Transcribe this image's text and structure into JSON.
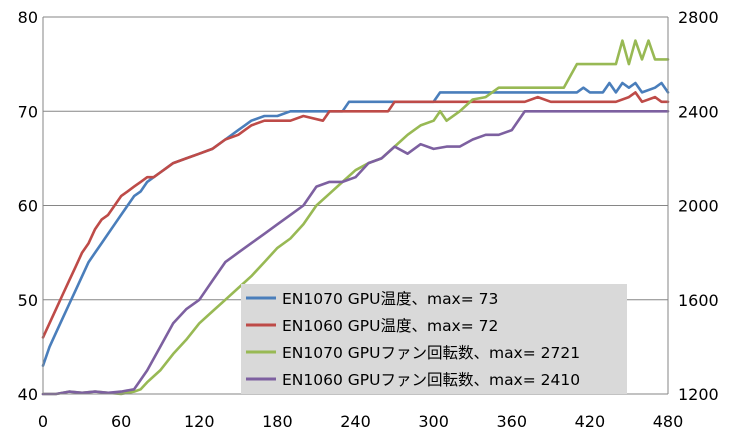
{
  "chart_data": {
    "type": "line",
    "title": "",
    "xlabel": "",
    "ylabel": "",
    "grid": true,
    "legend_position": "bottom-right",
    "x_axis": {
      "min": 0,
      "max": 480,
      "ticks": [
        0,
        60,
        120,
        180,
        240,
        300,
        360,
        420,
        480
      ]
    },
    "y_left": {
      "min": 40,
      "max": 80,
      "ticks": [
        40,
        50,
        60,
        70,
        80
      ]
    },
    "y_right": {
      "min": 1200,
      "max": 2800,
      "ticks": [
        1200,
        1600,
        2000,
        2400,
        2800
      ]
    },
    "series": [
      {
        "name": "EN1070 GPU温度、max= 73",
        "color": "#4a7ebb",
        "axis": "left",
        "points": [
          [
            0,
            43
          ],
          [
            5,
            45
          ],
          [
            10,
            46.5
          ],
          [
            15,
            48
          ],
          [
            20,
            49.5
          ],
          [
            25,
            51
          ],
          [
            30,
            52.5
          ],
          [
            35,
            54
          ],
          [
            40,
            55
          ],
          [
            45,
            56
          ],
          [
            50,
            57
          ],
          [
            55,
            58
          ],
          [
            60,
            59
          ],
          [
            65,
            60
          ],
          [
            70,
            61
          ],
          [
            75,
            61.5
          ],
          [
            80,
            62.5
          ],
          [
            85,
            63
          ],
          [
            90,
            63.5
          ],
          [
            95,
            64
          ],
          [
            100,
            64.5
          ],
          [
            110,
            65
          ],
          [
            120,
            65.5
          ],
          [
            130,
            66
          ],
          [
            140,
            67
          ],
          [
            150,
            68
          ],
          [
            155,
            68.5
          ],
          [
            160,
            69
          ],
          [
            170,
            69.5
          ],
          [
            180,
            69.5
          ],
          [
            190,
            70
          ],
          [
            200,
            70
          ],
          [
            230,
            70
          ],
          [
            235,
            71
          ],
          [
            300,
            71
          ],
          [
            305,
            72
          ],
          [
            320,
            72
          ],
          [
            330,
            72
          ],
          [
            400,
            72
          ],
          [
            410,
            72
          ],
          [
            415,
            72.5
          ],
          [
            420,
            72
          ],
          [
            430,
            72
          ],
          [
            435,
            73
          ],
          [
            440,
            72
          ],
          [
            445,
            73
          ],
          [
            450,
            72.5
          ],
          [
            455,
            73
          ],
          [
            460,
            72
          ],
          [
            470,
            72.5
          ],
          [
            475,
            73
          ],
          [
            480,
            72
          ]
        ]
      },
      {
        "name": "EN1060 GPU温度、max= 72",
        "color": "#be4b48",
        "axis": "left",
        "points": [
          [
            0,
            46
          ],
          [
            5,
            47.5
          ],
          [
            10,
            49
          ],
          [
            15,
            50.5
          ],
          [
            20,
            52
          ],
          [
            25,
            53.5
          ],
          [
            30,
            55
          ],
          [
            35,
            56
          ],
          [
            40,
            57.5
          ],
          [
            45,
            58.5
          ],
          [
            50,
            59
          ],
          [
            55,
            60
          ],
          [
            60,
            61
          ],
          [
            65,
            61.5
          ],
          [
            70,
            62
          ],
          [
            75,
            62.5
          ],
          [
            80,
            63
          ],
          [
            85,
            63
          ],
          [
            90,
            63.5
          ],
          [
            95,
            64
          ],
          [
            100,
            64.5
          ],
          [
            110,
            65
          ],
          [
            120,
            65.5
          ],
          [
            130,
            66
          ],
          [
            140,
            67
          ],
          [
            150,
            67.5
          ],
          [
            155,
            68
          ],
          [
            160,
            68.5
          ],
          [
            170,
            69
          ],
          [
            180,
            69
          ],
          [
            190,
            69
          ],
          [
            200,
            69.5
          ],
          [
            215,
            69
          ],
          [
            220,
            70
          ],
          [
            260,
            70
          ],
          [
            265,
            70
          ],
          [
            270,
            71
          ],
          [
            300,
            71
          ],
          [
            305,
            71
          ],
          [
            310,
            71
          ],
          [
            350,
            71
          ],
          [
            360,
            71
          ],
          [
            370,
            71
          ],
          [
            380,
            71.5
          ],
          [
            390,
            71
          ],
          [
            420,
            71
          ],
          [
            440,
            71
          ],
          [
            450,
            71.5
          ],
          [
            455,
            72
          ],
          [
            460,
            71
          ],
          [
            470,
            71.5
          ],
          [
            475,
            71
          ],
          [
            480,
            71
          ]
        ]
      },
      {
        "name": "EN1070 GPUファン回転数、max=  2721",
        "color": "#98b954",
        "axis": "right",
        "points": [
          [
            0,
            1200
          ],
          [
            10,
            1200
          ],
          [
            20,
            1210
          ],
          [
            30,
            1205
          ],
          [
            40,
            1210
          ],
          [
            50,
            1205
          ],
          [
            60,
            1200
          ],
          [
            70,
            1210
          ],
          [
            75,
            1220
          ],
          [
            80,
            1250
          ],
          [
            90,
            1300
          ],
          [
            100,
            1370
          ],
          [
            110,
            1430
          ],
          [
            120,
            1500
          ],
          [
            130,
            1550
          ],
          [
            140,
            1600
          ],
          [
            150,
            1650
          ],
          [
            160,
            1700
          ],
          [
            170,
            1760
          ],
          [
            180,
            1820
          ],
          [
            190,
            1860
          ],
          [
            200,
            1920
          ],
          [
            210,
            2000
          ],
          [
            220,
            2050
          ],
          [
            230,
            2100
          ],
          [
            240,
            2150
          ],
          [
            250,
            2180
          ],
          [
            260,
            2200
          ],
          [
            270,
            2250
          ],
          [
            280,
            2300
          ],
          [
            290,
            2340
          ],
          [
            300,
            2360
          ],
          [
            305,
            2400
          ],
          [
            310,
            2360
          ],
          [
            320,
            2400
          ],
          [
            330,
            2450
          ],
          [
            340,
            2460
          ],
          [
            350,
            2500
          ],
          [
            360,
            2500
          ],
          [
            400,
            2500
          ],
          [
            410,
            2600
          ],
          [
            440,
            2600
          ],
          [
            445,
            2700
          ],
          [
            450,
            2600
          ],
          [
            455,
            2700
          ],
          [
            460,
            2620
          ],
          [
            465,
            2700
          ],
          [
            470,
            2620
          ],
          [
            480,
            2620
          ]
        ]
      },
      {
        "name": "EN1060 GPUファン回転数、max=  2410",
        "color": "#7d60a0",
        "axis": "right",
        "points": [
          [
            0,
            1200
          ],
          [
            10,
            1200
          ],
          [
            20,
            1210
          ],
          [
            30,
            1205
          ],
          [
            40,
            1210
          ],
          [
            50,
            1205
          ],
          [
            60,
            1210
          ],
          [
            70,
            1220
          ],
          [
            80,
            1300
          ],
          [
            90,
            1400
          ],
          [
            100,
            1500
          ],
          [
            110,
            1560
          ],
          [
            120,
            1600
          ],
          [
            130,
            1680
          ],
          [
            140,
            1760
          ],
          [
            150,
            1800
          ],
          [
            160,
            1840
          ],
          [
            170,
            1880
          ],
          [
            180,
            1920
          ],
          [
            190,
            1960
          ],
          [
            200,
            2000
          ],
          [
            210,
            2080
          ],
          [
            220,
            2100
          ],
          [
            230,
            2100
          ],
          [
            240,
            2120
          ],
          [
            250,
            2180
          ],
          [
            260,
            2200
          ],
          [
            270,
            2250
          ],
          [
            280,
            2220
          ],
          [
            290,
            2260
          ],
          [
            300,
            2240
          ],
          [
            310,
            2250
          ],
          [
            320,
            2250
          ],
          [
            330,
            2280
          ],
          [
            340,
            2300
          ],
          [
            350,
            2300
          ],
          [
            360,
            2320
          ],
          [
            370,
            2400
          ],
          [
            380,
            2400
          ],
          [
            420,
            2400
          ],
          [
            480,
            2400
          ]
        ]
      }
    ]
  }
}
